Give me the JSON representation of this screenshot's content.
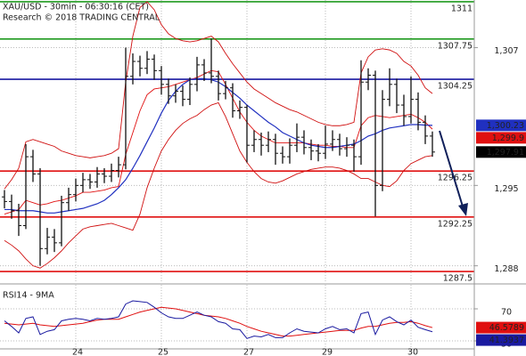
{
  "chart_data": [
    {
      "type": "ohlc",
      "title": "XAU/USD - 30min - 06:30:16 (CET)",
      "subtitle": "Research © 2018 TRADING CENTRAL",
      "ylim": [
        1286.5,
        1311.15
      ],
      "yticks": [
        {
          "value": 1307,
          "label": "1,307"
        },
        {
          "value": 1295,
          "label": "1,295"
        },
        {
          "value": 1288,
          "label": "1,288"
        }
      ],
      "grid": true,
      "bar_color": "#111111",
      "close_box_color": "#000000",
      "levels": [
        {
          "value": 1311,
          "color": "#1f9a1f"
        },
        {
          "value": 1307.75,
          "color": "#1f9a1f"
        },
        {
          "value": 1304.25,
          "color": "#1a1aa0"
        },
        {
          "value": 1296.25,
          "color": "#e01010"
        },
        {
          "value": 1292.25,
          "color": "#e01010"
        },
        {
          "value": 1287.5,
          "color": "#e01010"
        }
      ],
      "open": [
        1294.0,
        1293.6,
        1292.8,
        1291.5,
        1297.5,
        1296.0,
        1289.5,
        1290.5,
        1290.0,
        1293.5,
        1294.2,
        1295.0,
        1295.5,
        1295.3,
        1296.0,
        1295.8,
        1296.3,
        1296.8,
        1304.5,
        1305.8,
        1305.2,
        1306.0,
        1305.0,
        1303.8,
        1302.8,
        1303.2,
        1302.5,
        1303.8,
        1305.5,
        1304.8,
        1304.5,
        1303.0,
        1303.5,
        1301.5,
        1301.8,
        1298.5,
        1299.0,
        1298.5,
        1299.0,
        1297.8,
        1297.5,
        1298.5,
        1299.2,
        1298.3,
        1298.0,
        1297.8,
        1298.6,
        1299.0,
        1298.2,
        1298.5,
        1297.5,
        1304.0,
        1304.6,
        1295.0,
        1302.5,
        1303.8,
        1302.0,
        1301.0,
        1302.5,
        1300.5,
        1299.3
      ],
      "high": [
        1294.6,
        1294.2,
        1293.4,
        1298.6,
        1298.1,
        1296.5,
        1291.3,
        1291.2,
        1294.1,
        1294.8,
        1295.6,
        1296.1,
        1296.0,
        1296.6,
        1296.5,
        1296.9,
        1297.5,
        1307.0,
        1306.5,
        1306.3,
        1306.7,
        1306.4,
        1305.4,
        1304.3,
        1303.8,
        1303.7,
        1304.4,
        1306.2,
        1306.0,
        1307.8,
        1305.0,
        1304.1,
        1303.9,
        1302.4,
        1302.0,
        1299.8,
        1299.6,
        1299.7,
        1299.5,
        1298.4,
        1299.1,
        1300.4,
        1299.8,
        1299.0,
        1298.6,
        1300.2,
        1299.8,
        1299.5,
        1299.2,
        1299.0,
        1305.9,
        1305.2,
        1305.0,
        1303.3,
        1305.2,
        1304.3,
        1302.9,
        1304.5,
        1303.1,
        1301.1,
        1299.7
      ],
      "low": [
        1293.0,
        1292.1,
        1290.6,
        1291.2,
        1295.3,
        1288.0,
        1289.0,
        1289.2,
        1289.7,
        1292.8,
        1293.6,
        1294.4,
        1294.7,
        1294.8,
        1295.2,
        1295.3,
        1295.7,
        1296.4,
        1303.8,
        1304.5,
        1304.7,
        1304.2,
        1302.9,
        1302.1,
        1302.2,
        1301.9,
        1302.0,
        1303.2,
        1304.1,
        1303.9,
        1302.4,
        1302.5,
        1300.9,
        1300.8,
        1297.0,
        1297.9,
        1297.6,
        1297.9,
        1296.8,
        1296.9,
        1296.9,
        1297.9,
        1297.7,
        1297.2,
        1297.1,
        1297.3,
        1298.0,
        1297.6,
        1297.5,
        1296.2,
        1296.8,
        1303.3,
        1292.3,
        1294.5,
        1301.9,
        1301.3,
        1300.2,
        1300.4,
        1299.8,
        1298.6,
        1297.5
      ],
      "close": [
        1293.6,
        1292.8,
        1291.5,
        1297.5,
        1296.0,
        1289.5,
        1290.5,
        1290.0,
        1293.5,
        1294.2,
        1295.0,
        1295.5,
        1295.3,
        1296.0,
        1295.8,
        1296.3,
        1296.8,
        1304.5,
        1305.8,
        1305.2,
        1306.0,
        1305.0,
        1303.8,
        1302.8,
        1303.2,
        1302.5,
        1303.8,
        1305.5,
        1304.8,
        1304.5,
        1303.0,
        1303.5,
        1301.5,
        1301.8,
        1298.5,
        1299.0,
        1298.5,
        1299.0,
        1297.8,
        1297.5,
        1298.5,
        1299.2,
        1298.3,
        1298.0,
        1297.8,
        1298.6,
        1299.0,
        1298.2,
        1298.5,
        1297.5,
        1304.0,
        1304.6,
        1295.0,
        1302.5,
        1303.8,
        1302.0,
        1301.0,
        1302.5,
        1300.5,
        1299.3,
        1297.91
      ],
      "close_value_labels": [
        null,
        null,
        null,
        null,
        null,
        null,
        null,
        null,
        null,
        null,
        null,
        null,
        null,
        null,
        null,
        null,
        null,
        null,
        null,
        null,
        null,
        null,
        null,
        null,
        null,
        null,
        null,
        null,
        null,
        null,
        null,
        null,
        null,
        null,
        null,
        null,
        null,
        null,
        null,
        null,
        null,
        null,
        null,
        null,
        null,
        null,
        null,
        null,
        null,
        null,
        null,
        null,
        null,
        null,
        null,
        null,
        null,
        null,
        null,
        null,
        "1,297.91"
      ],
      "series": [
        {
          "color": "#d01010",
          "values": [
            1294.7,
            1295.5,
            1296.5,
            1298.8,
            1299.0,
            1298.8,
            1298.6,
            1298.4,
            1298.0,
            1297.8,
            1297.6,
            1297.5,
            1297.4,
            1297.5,
            1297.6,
            1297.8,
            1298.2,
            1304.0,
            1308.0,
            1310.5,
            1311.0,
            1310.3,
            1309.0,
            1308.2,
            1307.8,
            1307.6,
            1307.5,
            1307.6,
            1307.8,
            1308.0,
            1307.5,
            1306.5,
            1305.6,
            1304.8,
            1304.0,
            1303.4,
            1303.0,
            1302.6,
            1302.2,
            1301.9,
            1301.6,
            1301.4,
            1301.1,
            1300.8,
            1300.5,
            1300.3,
            1300.2,
            1300.2,
            1300.3,
            1300.5,
            1304.8,
            1306.2,
            1306.8,
            1306.9,
            1306.8,
            1306.5,
            1305.8,
            1305.4,
            1304.6,
            1303.5,
            1303.0
          ]
        },
        {
          "color": "#d01010",
          "values": [
            1290.2,
            1289.8,
            1289.3,
            1288.6,
            1288.0,
            1287.8,
            1288.2,
            1288.7,
            1289.3,
            1290.0,
            1290.6,
            1291.2,
            1291.4,
            1291.5,
            1291.6,
            1291.7,
            1291.5,
            1291.3,
            1291.1,
            1292.5,
            1294.8,
            1296.5,
            1298.0,
            1299.0,
            1299.8,
            1300.4,
            1300.8,
            1301.1,
            1301.6,
            1302.0,
            1302.2,
            1301.0,
            1299.5,
            1298.0,
            1297.0,
            1296.2,
            1295.6,
            1295.3,
            1295.2,
            1295.4,
            1295.7,
            1296.0,
            1296.2,
            1296.4,
            1296.5,
            1296.6,
            1296.6,
            1296.5,
            1296.3,
            1296.0,
            1295.6,
            1295.6,
            1295.3,
            1295.0,
            1294.9,
            1295.4,
            1296.3,
            1296.9,
            1297.2,
            1297.5,
            1297.6
          ]
        },
        {
          "color": "#e01010",
          "values": [
            1292.5,
            1292.7,
            1292.9,
            1293.7,
            1293.5,
            1293.3,
            1293.4,
            1293.6,
            1293.7,
            1293.9,
            1294.1,
            1294.4,
            1294.4,
            1294.5,
            1294.6,
            1294.8,
            1294.9,
            1297.7,
            1299.6,
            1301.5,
            1302.9,
            1303.4,
            1303.5,
            1303.6,
            1303.8,
            1304.0,
            1304.2,
            1304.4,
            1304.7,
            1305.0,
            1304.9,
            1303.8,
            1302.6,
            1301.4,
            1300.5,
            1299.8,
            1299.3,
            1299.0,
            1298.7,
            1298.7,
            1298.7,
            1298.7,
            1298.7,
            1298.6,
            1298.5,
            1298.5,
            1298.4,
            1298.4,
            1298.3,
            1298.3,
            1300.2,
            1300.9,
            1301.1,
            1301.0,
            1300.9,
            1301.0,
            1301.1,
            1301.2,
            1300.9,
            1300.5,
            1299.9
          ],
          "value_labels": [
            null,
            null,
            null,
            null,
            null,
            null,
            null,
            null,
            null,
            null,
            null,
            null,
            null,
            null,
            null,
            null,
            null,
            null,
            null,
            null,
            null,
            null,
            null,
            null,
            null,
            null,
            null,
            null,
            null,
            null,
            null,
            null,
            null,
            null,
            null,
            null,
            null,
            null,
            null,
            null,
            null,
            null,
            null,
            null,
            null,
            null,
            null,
            null,
            null,
            null,
            null,
            null,
            null,
            null,
            null,
            null,
            null,
            null,
            null,
            null,
            "1,299.9"
          ]
        },
        {
          "color": "#2030c0",
          "values": [
            1292.9,
            1292.9,
            1292.8,
            1292.8,
            1292.8,
            1292.7,
            1292.6,
            1292.6,
            1292.7,
            1292.8,
            1292.9,
            1293.0,
            1293.2,
            1293.4,
            1293.7,
            1294.2,
            1294.8,
            1295.5,
            1296.5,
            1297.6,
            1298.8,
            1300.0,
            1301.3,
            1302.4,
            1303.2,
            1303.8,
            1304.2,
            1304.3,
            1304.3,
            1304.2,
            1304.0,
            1303.6,
            1303.1,
            1302.6,
            1302.0,
            1301.5,
            1301.0,
            1300.5,
            1300.1,
            1299.6,
            1299.3,
            1299.0,
            1298.7,
            1298.5,
            1298.4,
            1298.3,
            1298.3,
            1298.4,
            1298.5,
            1298.6,
            1298.9,
            1299.3,
            1299.5,
            1299.8,
            1300.0,
            1300.1,
            1300.2,
            1300.3,
            1300.3,
            1300.25,
            1300.23
          ],
          "value_labels": [
            null,
            null,
            null,
            null,
            null,
            null,
            null,
            null,
            null,
            null,
            null,
            null,
            null,
            null,
            null,
            null,
            null,
            null,
            null,
            null,
            null,
            null,
            null,
            null,
            null,
            null,
            null,
            null,
            null,
            null,
            null,
            null,
            null,
            null,
            null,
            null,
            null,
            null,
            null,
            null,
            null,
            null,
            null,
            null,
            null,
            null,
            null,
            null,
            null,
            null,
            null,
            null,
            null,
            null,
            null,
            null,
            null,
            null,
            null,
            null,
            "1,300.23"
          ]
        }
      ]
    },
    {
      "type": "line",
      "title": "RSI14 - 9MA",
      "ylim": [
        20,
        100
      ],
      "yticks": [
        70,
        30
      ],
      "grid": true,
      "categories": [
        null,
        null,
        null,
        null,
        null,
        null,
        null,
        null,
        null,
        null,
        "24",
        null,
        null,
        null,
        null,
        null,
        null,
        null,
        null,
        null,
        null,
        null,
        "25",
        null,
        null,
        null,
        null,
        null,
        null,
        null,
        null,
        null,
        null,
        null,
        "27",
        null,
        null,
        null,
        null,
        null,
        null,
        null,
        null,
        null,
        null,
        "29",
        null,
        null,
        null,
        null,
        null,
        null,
        null,
        null,
        null,
        null,
        null,
        "30",
        null,
        null,
        null
      ],
      "series": [
        {
          "color": "#e01010",
          "values": [
            52,
            51,
            50,
            51,
            52,
            50,
            49,
            48,
            49,
            50,
            51,
            52,
            54,
            56,
            57,
            57,
            57,
            60,
            63,
            66,
            68,
            70,
            72,
            71,
            70,
            68,
            66,
            64,
            62,
            61,
            60,
            58,
            55,
            52,
            48,
            45,
            42,
            40,
            38,
            36,
            36,
            37,
            38,
            39,
            40,
            41,
            42,
            43,
            43,
            43,
            46,
            48,
            48,
            50,
            52,
            53,
            53,
            54,
            52,
            49,
            46.5789
          ]
        },
        {
          "color": "#1a1aa0",
          "values": [
            55,
            48,
            40,
            58,
            60,
            38,
            42,
            44,
            55,
            57,
            58,
            57,
            55,
            58,
            57,
            58,
            60,
            76,
            80,
            79,
            78,
            72,
            65,
            60,
            58,
            58,
            62,
            66,
            62,
            60,
            54,
            52,
            45,
            44,
            33,
            36,
            35,
            38,
            34,
            34,
            40,
            45,
            42,
            41,
            40,
            45,
            48,
            44,
            45,
            40,
            64,
            66,
            38,
            56,
            60,
            54,
            50,
            56,
            47,
            44,
            41.3937
          ]
        }
      ]
    }
  ]
}
